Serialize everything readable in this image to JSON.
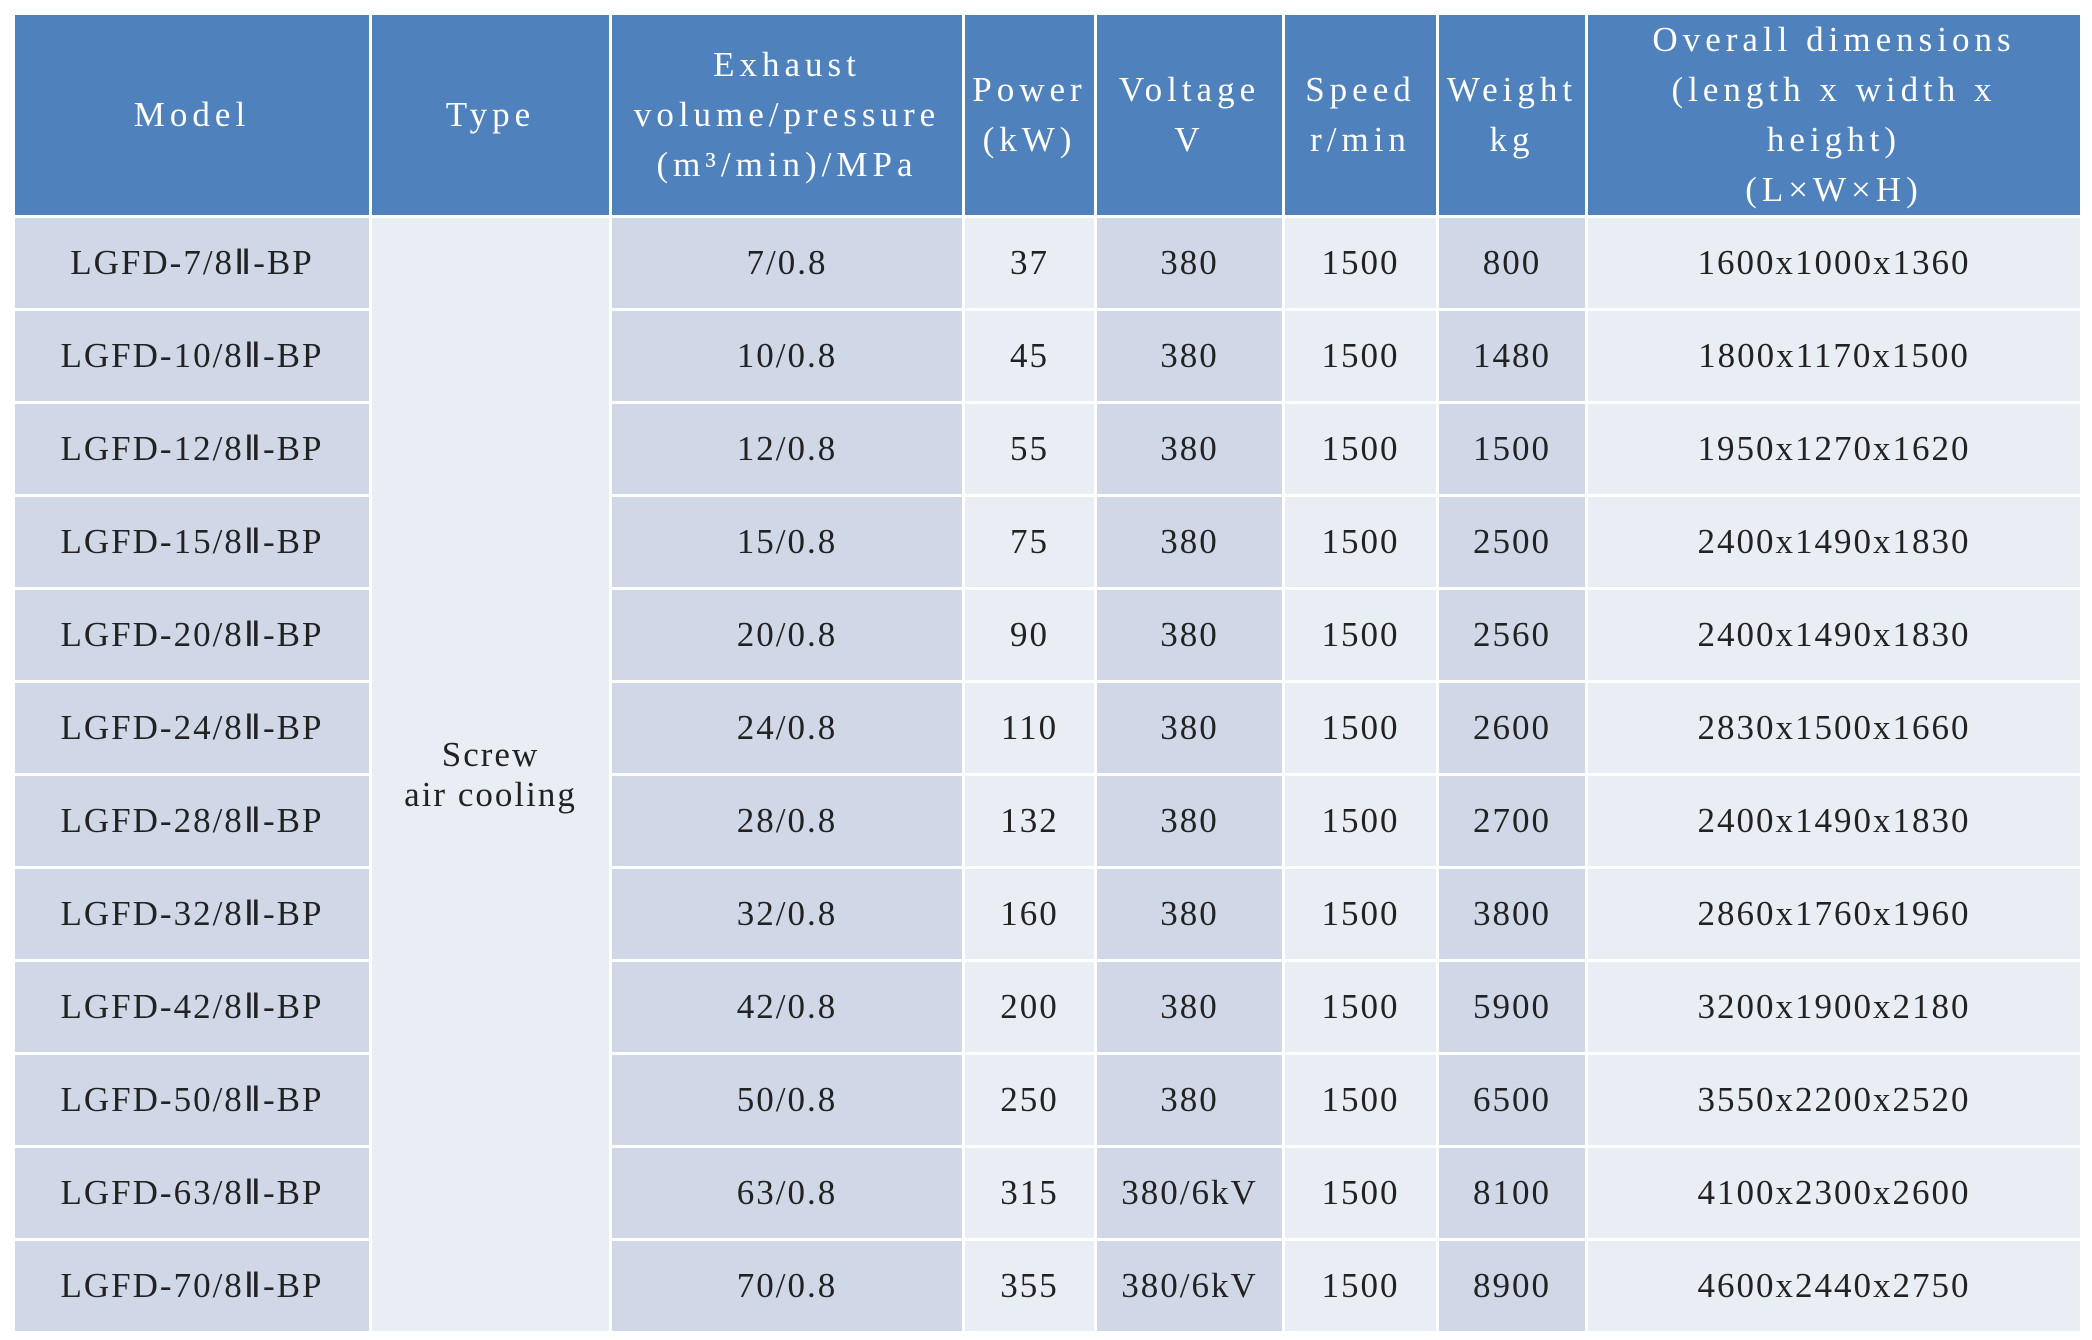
{
  "table": {
    "header": [
      [
        "Model"
      ],
      [
        "Type"
      ],
      [
        "Exhaust",
        "volume/pressure",
        "(m³/min)/MPa"
      ],
      [
        "Power",
        "(kW)"
      ],
      [
        "Voltage",
        "V"
      ],
      [
        "Speed",
        "r/min"
      ],
      [
        "Weight",
        "kg"
      ],
      [
        "Overall dimensions",
        "(length x width x",
        "height)",
        "(L×W×H)"
      ]
    ],
    "type": [
      "Screw",
      "air cooling"
    ],
    "rows": [
      [
        "LGFD-7/8Ⅱ-BP",
        "7/0.8",
        "37",
        "380",
        "1500",
        "800",
        "1600x1000x1360"
      ],
      [
        "LGFD-10/8Ⅱ-BP",
        "10/0.8",
        "45",
        "380",
        "1500",
        "1480",
        "1800x1170x1500"
      ],
      [
        "LGFD-12/8Ⅱ-BP",
        "12/0.8",
        "55",
        "380",
        "1500",
        "1500",
        "1950x1270x1620"
      ],
      [
        "LGFD-15/8Ⅱ-BP",
        "15/0.8",
        "75",
        "380",
        "1500",
        "2500",
        "2400x1490x1830"
      ],
      [
        "LGFD-20/8Ⅱ-BP",
        "20/0.8",
        "90",
        "380",
        "1500",
        "2560",
        "2400x1490x1830"
      ],
      [
        "LGFD-24/8Ⅱ-BP",
        "24/0.8",
        "110",
        "380",
        "1500",
        "2600",
        "2830x1500x1660"
      ],
      [
        "LGFD-28/8Ⅱ-BP",
        "28/0.8",
        "132",
        "380",
        "1500",
        "2700",
        "2400x1490x1830"
      ],
      [
        "LGFD-32/8Ⅱ-BP",
        "32/0.8",
        "160",
        "380",
        "1500",
        "3800",
        "2860x1760x1960"
      ],
      [
        "LGFD-42/8Ⅱ-BP",
        "42/0.8",
        "200",
        "380",
        "1500",
        "5900",
        "3200x1900x2180"
      ],
      [
        "LGFD-50/8Ⅱ-BP",
        "50/0.8",
        "250",
        "380",
        "1500",
        "6500",
        "3550x2200x2520"
      ],
      [
        "LGFD-63/8Ⅱ-BP",
        "63/0.8",
        "315",
        "380/6kV",
        "1500",
        "8100",
        "4100x2300x2600"
      ],
      [
        "LGFD-70/8Ⅱ-BP",
        "70/0.8",
        "355",
        "380/6kV",
        "1500",
        "8900",
        "4600x2440x2750"
      ]
    ]
  }
}
